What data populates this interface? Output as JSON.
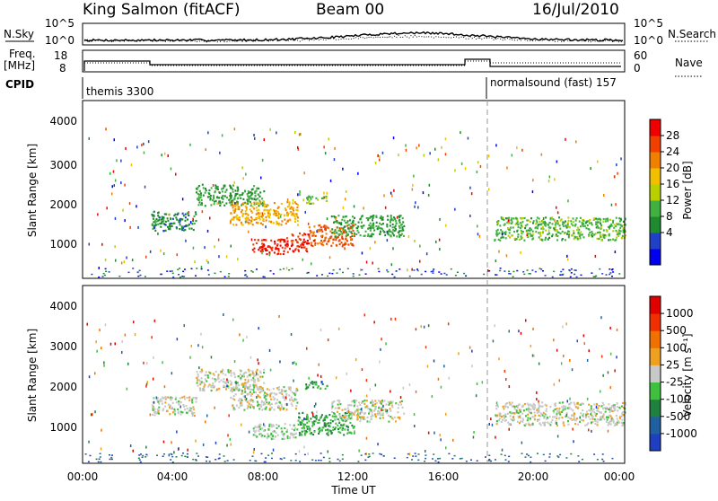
{
  "header": {
    "station": "King Salmon (fitACF)",
    "beam": "Beam 00",
    "date": "16/Jul/2010"
  },
  "top_panels": {
    "nsky_label": "N.Sky",
    "nsky_ticks": [
      "10^5",
      "10^0"
    ],
    "nsearch_label": "N.Search",
    "nsearch_ticks": [
      "10^5",
      "10^0"
    ],
    "freq_label": "Freq.",
    "freq_unit": "[MHz]",
    "freq_ticks": [
      "18",
      "8"
    ],
    "nave_label": "Nave",
    "nave_ticks": [
      "60",
      "0"
    ],
    "cpid_label": "CPID",
    "cpid_segments": [
      {
        "name": "themis 3300",
        "start_hour": 0,
        "end_hour": 18
      },
      {
        "name": "normalsound (fast) 157",
        "start_hour": 18,
        "end_hour": 24
      }
    ]
  },
  "axes": {
    "xlabel": "Time UT",
    "x_ticks": [
      "00:00",
      "04:00",
      "08:00",
      "12:00",
      "16:00",
      "20:00",
      "00:00"
    ],
    "ylabel": "Slant Range [km]",
    "y_ticks": [
      "4000",
      "3000",
      "2000",
      "1000"
    ]
  },
  "colorbars": {
    "power": {
      "label": "Power [dB]",
      "ticks": [
        "28",
        "24",
        "20",
        "16",
        "12",
        "8",
        "4"
      ],
      "colors": [
        "#0000ee",
        "#2040c8",
        "#208a30",
        "#40b040",
        "#b8d000",
        "#f0c000",
        "#f08000",
        "#f04000",
        "#ee0000"
      ]
    },
    "velocity": {
      "label": "Velocity [m s⁻¹]",
      "ticks": [
        "1000",
        "500",
        "100",
        "25",
        "-25",
        "-100",
        "-500",
        "-1000"
      ],
      "colors": [
        "#1e40c0",
        "#2060a0",
        "#208040",
        "#40c040",
        "#c8c8c8",
        "#f0a020",
        "#f07000",
        "#f03000",
        "#e00000"
      ]
    }
  },
  "chart_data": [
    {
      "type": "heatmap",
      "title": "Power",
      "xlabel": "Time UT",
      "ylabel": "Slant Range [km]",
      "x_range_hours": [
        0,
        24
      ],
      "y_range_km": [
        0,
        4600
      ],
      "zlabel": "Power [dB]",
      "z_range": [
        0,
        30
      ],
      "regions": [
        {
          "name": "",
          "t0": 3.0,
          "t1": 5.0,
          "r0": 1250,
          "r1": 1750,
          "value": 8
        },
        {
          "name": "",
          "t0": 5.0,
          "t1": 8.0,
          "r0": 1900,
          "r1": 2450,
          "value": 10
        },
        {
          "name": "",
          "t0": 6.5,
          "t1": 9.5,
          "r0": 1400,
          "r1": 2000,
          "value": 20
        },
        {
          "name": "",
          "t0": 7.5,
          "t1": 9.0,
          "r0": 650,
          "r1": 1050,
          "value": 27
        },
        {
          "name": "",
          "t0": 9.0,
          "t1": 10.0,
          "r0": 700,
          "r1": 1200,
          "value": 27
        },
        {
          "name": "",
          "t0": 10.0,
          "t1": 12.0,
          "r0": 850,
          "r1": 1400,
          "value": 24
        },
        {
          "name": "",
          "t0": 11.0,
          "t1": 14.2,
          "r0": 1100,
          "r1": 1650,
          "value": 10
        },
        {
          "name": "",
          "t0": 9.8,
          "t1": 10.8,
          "r0": 1950,
          "r1": 2150,
          "value": 13
        },
        {
          "name": "",
          "t0": 18.2,
          "t1": 24.0,
          "r0": 1000,
          "r1": 1600,
          "value": 12
        }
      ]
    },
    {
      "type": "heatmap",
      "title": "Velocity",
      "xlabel": "Time UT",
      "ylabel": "Slant Range [km]",
      "x_range_hours": [
        0,
        24
      ],
      "y_range_km": [
        0,
        4600
      ],
      "zlabel": "Velocity [m s⁻¹]",
      "z_range": [
        -1000,
        1000
      ],
      "regions": [
        {
          "name": "",
          "t0": 3.0,
          "t1": 5.0,
          "r0": 1250,
          "r1": 1750,
          "value": 0
        },
        {
          "name": "",
          "t0": 5.0,
          "t1": 8.0,
          "r0": 1900,
          "r1": 2450,
          "value": 0
        },
        {
          "name": "",
          "t0": 6.5,
          "t1": 9.5,
          "r0": 1400,
          "r1": 2000,
          "value": 0
        },
        {
          "name": "",
          "t0": 7.5,
          "t1": 9.5,
          "r0": 650,
          "r1": 1050,
          "value": -100
        },
        {
          "name": "",
          "t0": 9.5,
          "t1": 12.0,
          "r0": 750,
          "r1": 1350,
          "value": -300
        },
        {
          "name": "",
          "t0": 11.0,
          "t1": 14.2,
          "r0": 1100,
          "r1": 1650,
          "value": 0
        },
        {
          "name": "",
          "t0": 9.8,
          "t1": 10.8,
          "r0": 1950,
          "r1": 2150,
          "value": -300
        },
        {
          "name": "",
          "t0": 18.2,
          "t1": 24.0,
          "r0": 1000,
          "r1": 1600,
          "value": 0
        }
      ]
    }
  ]
}
